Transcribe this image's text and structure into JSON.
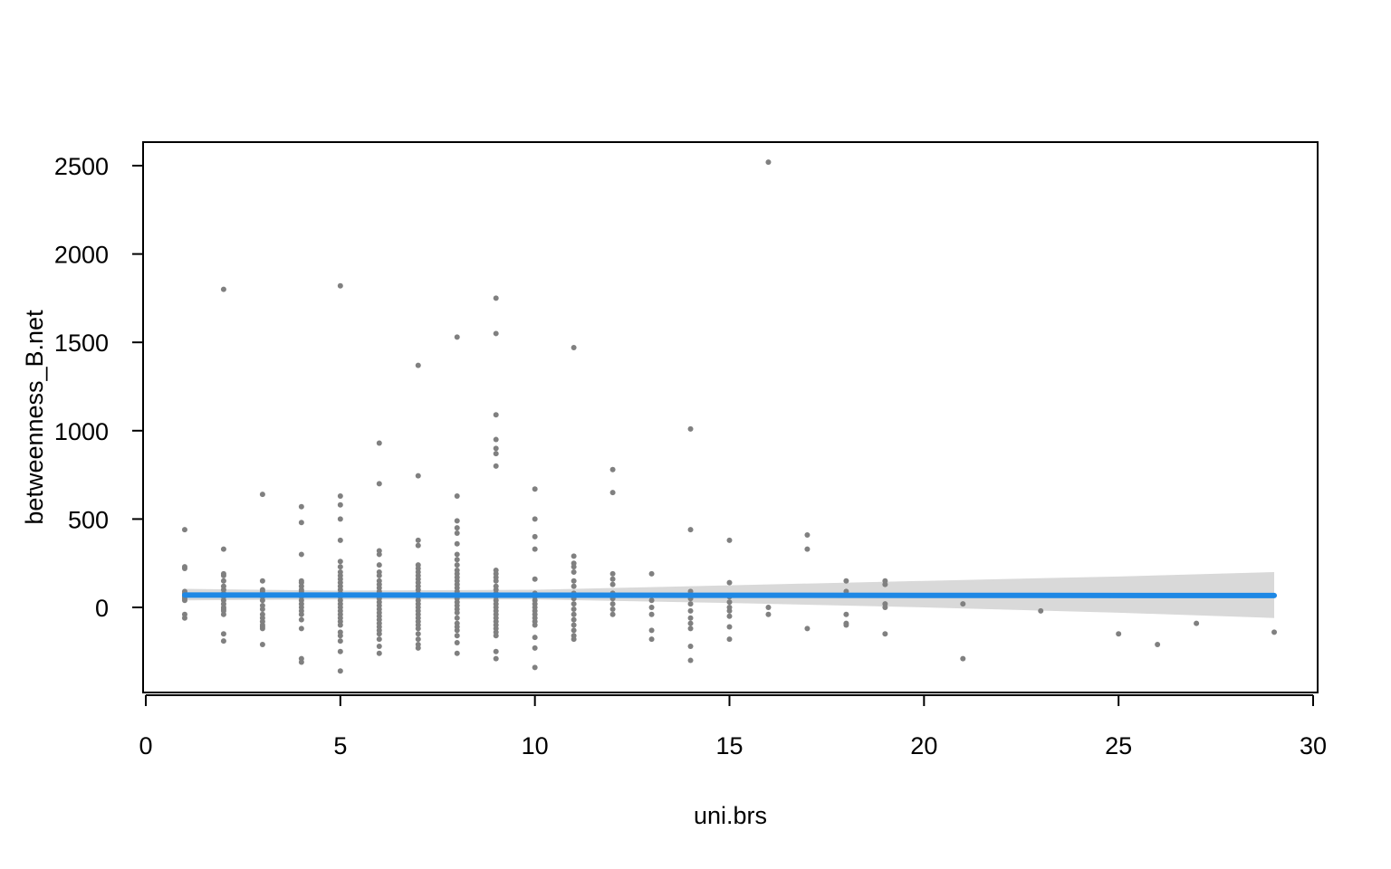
{
  "chart_data": {
    "type": "scatter",
    "xlabel": "uni.brs",
    "ylabel": "betweenness_B.net",
    "xlim": [
      0,
      30
    ],
    "ylim": [
      -450,
      2650
    ],
    "x_ticks": [
      0,
      5,
      10,
      15,
      20,
      25,
      30
    ],
    "y_ticks": [
      0,
      500,
      1000,
      1500,
      2000,
      2500
    ],
    "grid": false,
    "colors": {
      "points": "#808080",
      "fit_line": "#1e88e5",
      "confidence_band": "#d9d9d9"
    },
    "points": [
      [
        1,
        440
      ],
      [
        1,
        230
      ],
      [
        1,
        220
      ],
      [
        1,
        90
      ],
      [
        1,
        80
      ],
      [
        1,
        70
      ],
      [
        1,
        60
      ],
      [
        1,
        50
      ],
      [
        1,
        40
      ],
      [
        1,
        -40
      ],
      [
        1,
        -60
      ],
      [
        2,
        1800
      ],
      [
        2,
        330
      ],
      [
        2,
        190
      ],
      [
        2,
        180
      ],
      [
        2,
        150
      ],
      [
        2,
        120
      ],
      [
        2,
        100
      ],
      [
        2,
        80
      ],
      [
        2,
        60
      ],
      [
        2,
        40
      ],
      [
        2,
        20
      ],
      [
        2,
        0
      ],
      [
        2,
        -10
      ],
      [
        2,
        -20
      ],
      [
        2,
        -40
      ],
      [
        2,
        -150
      ],
      [
        2,
        -190
      ],
      [
        3,
        640
      ],
      [
        3,
        150
      ],
      [
        3,
        100
      ],
      [
        3,
        90
      ],
      [
        3,
        60
      ],
      [
        3,
        40
      ],
      [
        3,
        10
      ],
      [
        3,
        -10
      ],
      [
        3,
        -40
      ],
      [
        3,
        -60
      ],
      [
        3,
        -80
      ],
      [
        3,
        -100
      ],
      [
        3,
        -110
      ],
      [
        3,
        -120
      ],
      [
        3,
        -210
      ],
      [
        4,
        570
      ],
      [
        4,
        480
      ],
      [
        4,
        300
      ],
      [
        4,
        150
      ],
      [
        4,
        140
      ],
      [
        4,
        120
      ],
      [
        4,
        100
      ],
      [
        4,
        90
      ],
      [
        4,
        80
      ],
      [
        4,
        60
      ],
      [
        4,
        40
      ],
      [
        4,
        20
      ],
      [
        4,
        0
      ],
      [
        4,
        -20
      ],
      [
        4,
        -40
      ],
      [
        4,
        -70
      ],
      [
        4,
        -120
      ],
      [
        4,
        -290
      ],
      [
        4,
        -310
      ],
      [
        5,
        1820
      ],
      [
        5,
        630
      ],
      [
        5,
        580
      ],
      [
        5,
        500
      ],
      [
        5,
        380
      ],
      [
        5,
        260
      ],
      [
        5,
        230
      ],
      [
        5,
        200
      ],
      [
        5,
        180
      ],
      [
        5,
        160
      ],
      [
        5,
        140
      ],
      [
        5,
        120
      ],
      [
        5,
        100
      ],
      [
        5,
        80
      ],
      [
        5,
        60
      ],
      [
        5,
        40
      ],
      [
        5,
        20
      ],
      [
        5,
        0
      ],
      [
        5,
        -20
      ],
      [
        5,
        -40
      ],
      [
        5,
        -60
      ],
      [
        5,
        -80
      ],
      [
        5,
        -100
      ],
      [
        5,
        -140
      ],
      [
        5,
        -160
      ],
      [
        5,
        -190
      ],
      [
        5,
        -250
      ],
      [
        5,
        -360
      ],
      [
        6,
        930
      ],
      [
        6,
        700
      ],
      [
        6,
        320
      ],
      [
        6,
        300
      ],
      [
        6,
        240
      ],
      [
        6,
        200
      ],
      [
        6,
        180
      ],
      [
        6,
        150
      ],
      [
        6,
        130
      ],
      [
        6,
        110
      ],
      [
        6,
        90
      ],
      [
        6,
        70
      ],
      [
        6,
        50
      ],
      [
        6,
        30
      ],
      [
        6,
        10
      ],
      [
        6,
        -10
      ],
      [
        6,
        -30
      ],
      [
        6,
        -50
      ],
      [
        6,
        -70
      ],
      [
        6,
        -90
      ],
      [
        6,
        -110
      ],
      [
        6,
        -130
      ],
      [
        6,
        -150
      ],
      [
        6,
        -180
      ],
      [
        6,
        -220
      ],
      [
        6,
        -260
      ],
      [
        7,
        1370
      ],
      [
        7,
        745
      ],
      [
        7,
        380
      ],
      [
        7,
        350
      ],
      [
        7,
        240
      ],
      [
        7,
        220
      ],
      [
        7,
        200
      ],
      [
        7,
        180
      ],
      [
        7,
        160
      ],
      [
        7,
        140
      ],
      [
        7,
        120
      ],
      [
        7,
        100
      ],
      [
        7,
        80
      ],
      [
        7,
        60
      ],
      [
        7,
        40
      ],
      [
        7,
        20
      ],
      [
        7,
        0
      ],
      [
        7,
        -20
      ],
      [
        7,
        -40
      ],
      [
        7,
        -60
      ],
      [
        7,
        -80
      ],
      [
        7,
        -100
      ],
      [
        7,
        -120
      ],
      [
        7,
        -150
      ],
      [
        7,
        -180
      ],
      [
        7,
        -210
      ],
      [
        7,
        -230
      ],
      [
        8,
        1530
      ],
      [
        8,
        630
      ],
      [
        8,
        490
      ],
      [
        8,
        450
      ],
      [
        8,
        420
      ],
      [
        8,
        360
      ],
      [
        8,
        300
      ],
      [
        8,
        270
      ],
      [
        8,
        240
      ],
      [
        8,
        210
      ],
      [
        8,
        190
      ],
      [
        8,
        170
      ],
      [
        8,
        150
      ],
      [
        8,
        130
      ],
      [
        8,
        110
      ],
      [
        8,
        90
      ],
      [
        8,
        70
      ],
      [
        8,
        50
      ],
      [
        8,
        30
      ],
      [
        8,
        10
      ],
      [
        8,
        -10
      ],
      [
        8,
        -30
      ],
      [
        8,
        -60
      ],
      [
        8,
        -90
      ],
      [
        8,
        -110
      ],
      [
        8,
        -130
      ],
      [
        8,
        -160
      ],
      [
        8,
        -200
      ],
      [
        8,
        -260
      ],
      [
        9,
        1750
      ],
      [
        9,
        1550
      ],
      [
        9,
        1090
      ],
      [
        9,
        950
      ],
      [
        9,
        900
      ],
      [
        9,
        870
      ],
      [
        9,
        800
      ],
      [
        9,
        210
      ],
      [
        9,
        190
      ],
      [
        9,
        170
      ],
      [
        9,
        150
      ],
      [
        9,
        120
      ],
      [
        9,
        100
      ],
      [
        9,
        80
      ],
      [
        9,
        60
      ],
      [
        9,
        40
      ],
      [
        9,
        20
      ],
      [
        9,
        0
      ],
      [
        9,
        -20
      ],
      [
        9,
        -40
      ],
      [
        9,
        -60
      ],
      [
        9,
        -80
      ],
      [
        9,
        -100
      ],
      [
        9,
        -120
      ],
      [
        9,
        -140
      ],
      [
        9,
        -160
      ],
      [
        9,
        -250
      ],
      [
        9,
        -290
      ],
      [
        10,
        670
      ],
      [
        10,
        500
      ],
      [
        10,
        400
      ],
      [
        10,
        330
      ],
      [
        10,
        160
      ],
      [
        10,
        80
      ],
      [
        10,
        60
      ],
      [
        10,
        40
      ],
      [
        10,
        20
      ],
      [
        10,
        0
      ],
      [
        10,
        -20
      ],
      [
        10,
        -40
      ],
      [
        10,
        -60
      ],
      [
        10,
        -80
      ],
      [
        10,
        -100
      ],
      [
        10,
        -170
      ],
      [
        10,
        -230
      ],
      [
        10,
        -340
      ],
      [
        11,
        1470
      ],
      [
        11,
        290
      ],
      [
        11,
        250
      ],
      [
        11,
        230
      ],
      [
        11,
        200
      ],
      [
        11,
        150
      ],
      [
        11,
        120
      ],
      [
        11,
        80
      ],
      [
        11,
        50
      ],
      [
        11,
        20
      ],
      [
        11,
        -10
      ],
      [
        11,
        -40
      ],
      [
        11,
        -70
      ],
      [
        11,
        -100
      ],
      [
        11,
        -130
      ],
      [
        11,
        -160
      ],
      [
        11,
        -180
      ],
      [
        12,
        780
      ],
      [
        12,
        650
      ],
      [
        12,
        190
      ],
      [
        12,
        160
      ],
      [
        12,
        130
      ],
      [
        12,
        80
      ],
      [
        12,
        50
      ],
      [
        12,
        20
      ],
      [
        12,
        -10
      ],
      [
        12,
        -40
      ],
      [
        13,
        190
      ],
      [
        13,
        40
      ],
      [
        13,
        0
      ],
      [
        13,
        -40
      ],
      [
        13,
        -130
      ],
      [
        13,
        -180
      ],
      [
        14,
        1010
      ],
      [
        14,
        440
      ],
      [
        14,
        90
      ],
      [
        14,
        70
      ],
      [
        14,
        50
      ],
      [
        14,
        20
      ],
      [
        14,
        -20
      ],
      [
        14,
        -60
      ],
      [
        14,
        -90
      ],
      [
        14,
        -120
      ],
      [
        14,
        -220
      ],
      [
        14,
        -300
      ],
      [
        15,
        380
      ],
      [
        15,
        140
      ],
      [
        15,
        60
      ],
      [
        15,
        30
      ],
      [
        15,
        0
      ],
      [
        15,
        -20
      ],
      [
        15,
        -50
      ],
      [
        15,
        -110
      ],
      [
        15,
        -180
      ],
      [
        16,
        2520
      ],
      [
        16,
        0
      ],
      [
        16,
        -40
      ],
      [
        17,
        410
      ],
      [
        17,
        330
      ],
      [
        17,
        -120
      ],
      [
        18,
        150
      ],
      [
        18,
        90
      ],
      [
        18,
        -40
      ],
      [
        18,
        -90
      ],
      [
        18,
        -100
      ],
      [
        19,
        150
      ],
      [
        19,
        130
      ],
      [
        19,
        20
      ],
      [
        19,
        0
      ],
      [
        19,
        -150
      ],
      [
        21,
        20
      ],
      [
        21,
        -290
      ],
      [
        23,
        -20
      ],
      [
        25,
        -150
      ],
      [
        26,
        -210
      ],
      [
        27,
        -90
      ],
      [
        29,
        -140
      ]
    ],
    "fit_line": {
      "x": [
        1,
        29
      ],
      "y": [
        70,
        67
      ]
    },
    "confidence_band": {
      "x": [
        1,
        5,
        10,
        15,
        20,
        25,
        29
      ],
      "upper": [
        105,
        95,
        100,
        125,
        150,
        175,
        200
      ],
      "lower": [
        40,
        45,
        45,
        25,
        0,
        -30,
        -60
      ]
    }
  }
}
